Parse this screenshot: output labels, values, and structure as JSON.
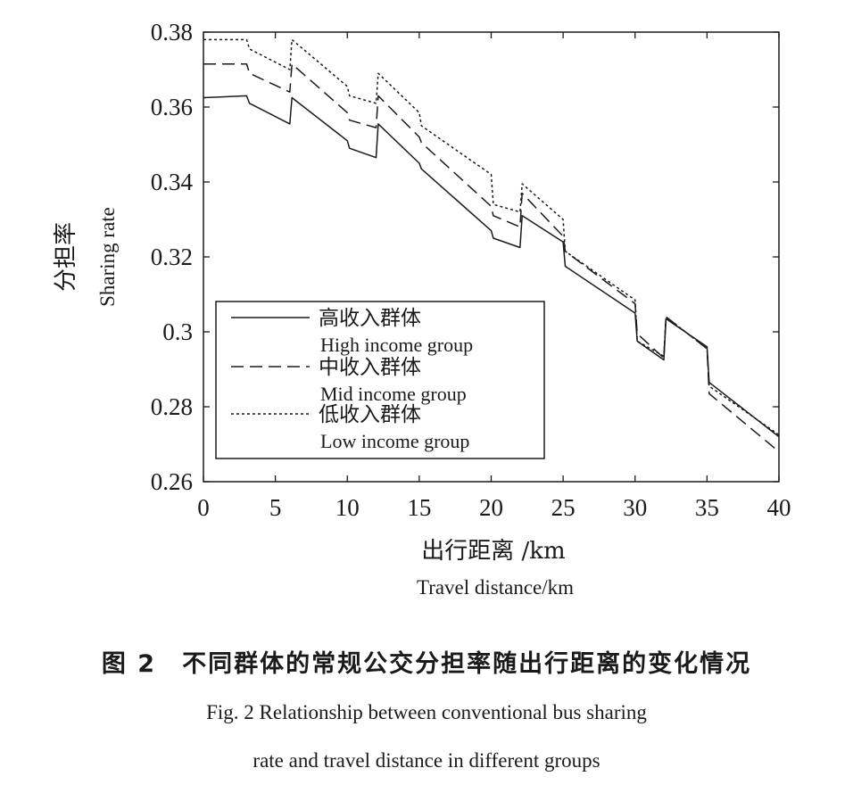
{
  "chart_data": {
    "type": "line",
    "xlabel_zh": "出行距离 /km",
    "xlabel_en": "Travel distance/km",
    "ylabel_zh": "分担率",
    "ylabel_en": "Sharing rate",
    "xlim": [
      0,
      40
    ],
    "ylim": [
      0.26,
      0.38
    ],
    "xticks": [
      0,
      5,
      10,
      15,
      20,
      25,
      30,
      35,
      40
    ],
    "yticks": [
      0.26,
      0.28,
      0.3,
      0.32,
      0.34,
      0.36,
      0.38
    ],
    "ytick_labels": [
      "0.26",
      "0.28",
      "0.3",
      "0.32",
      "0.34",
      "0.36",
      "0.38"
    ],
    "grid": false,
    "legend_position": "lower-left",
    "series": [
      {
        "name_zh": "高收入群体",
        "name_en": "High income group",
        "line_style": "solid",
        "points": [
          [
            0,
            0.3625
          ],
          [
            3,
            0.363
          ],
          [
            3.2,
            0.361
          ],
          [
            6,
            0.3555
          ],
          [
            6.15,
            0.3625
          ],
          [
            10,
            0.351
          ],
          [
            10.15,
            0.349
          ],
          [
            12,
            0.3465
          ],
          [
            12.15,
            0.3555
          ],
          [
            15,
            0.345
          ],
          [
            15.15,
            0.3435
          ],
          [
            20,
            0.327
          ],
          [
            20.15,
            0.325
          ],
          [
            22,
            0.3225
          ],
          [
            22.15,
            0.331
          ],
          [
            25,
            0.324
          ],
          [
            25.15,
            0.3175
          ],
          [
            30,
            0.305
          ],
          [
            30.15,
            0.2975
          ],
          [
            32,
            0.2925
          ],
          [
            32.15,
            0.3035
          ],
          [
            35,
            0.296
          ],
          [
            35.15,
            0.2865
          ],
          [
            40,
            0.272
          ]
        ]
      },
      {
        "name_zh": "中收入群体",
        "name_en": "Mid income group",
        "line_style": "dashed",
        "points": [
          [
            0,
            0.3715
          ],
          [
            3,
            0.3715
          ],
          [
            3.2,
            0.369
          ],
          [
            6,
            0.364
          ],
          [
            6.15,
            0.3715
          ],
          [
            10,
            0.3585
          ],
          [
            10.15,
            0.3565
          ],
          [
            12,
            0.3545
          ],
          [
            12.15,
            0.363
          ],
          [
            15,
            0.352
          ],
          [
            15.15,
            0.3505
          ],
          [
            20,
            0.3335
          ],
          [
            20.15,
            0.331
          ],
          [
            22,
            0.328
          ],
          [
            22.15,
            0.337
          ],
          [
            25,
            0.3255
          ],
          [
            25.15,
            0.3215
          ],
          [
            30,
            0.3075
          ],
          [
            30.15,
            0.2995
          ],
          [
            32,
            0.293
          ],
          [
            32.15,
            0.304
          ],
          [
            35,
            0.2955
          ],
          [
            35.15,
            0.2835
          ],
          [
            40,
            0.268
          ]
        ]
      },
      {
        "name_zh": "低收入群体",
        "name_en": "Low income group",
        "line_style": "dotted",
        "points": [
          [
            0,
            0.378
          ],
          [
            3,
            0.378
          ],
          [
            3.2,
            0.3755
          ],
          [
            6,
            0.37
          ],
          [
            6.15,
            0.378
          ],
          [
            10,
            0.3655
          ],
          [
            10.15,
            0.363
          ],
          [
            12,
            0.361
          ],
          [
            12.15,
            0.369
          ],
          [
            15,
            0.3585
          ],
          [
            15.15,
            0.355
          ],
          [
            20,
            0.342
          ],
          [
            20.15,
            0.334
          ],
          [
            22,
            0.332
          ],
          [
            22.15,
            0.3395
          ],
          [
            25,
            0.33
          ],
          [
            25.15,
            0.3215
          ],
          [
            30,
            0.3085
          ],
          [
            30.15,
            0.2975
          ],
          [
            32,
            0.2935
          ],
          [
            32.15,
            0.304
          ],
          [
            35,
            0.2955
          ],
          [
            35.15,
            0.2855
          ],
          [
            40,
            0.2725
          ]
        ]
      }
    ]
  },
  "caption": {
    "zh": "图 2　不同群体的常规公交分担率随出行距离的变化情况",
    "en_line1": "Fig. 2 Relationship between conventional bus sharing",
    "en_line2": "rate and travel distance in different groups"
  }
}
